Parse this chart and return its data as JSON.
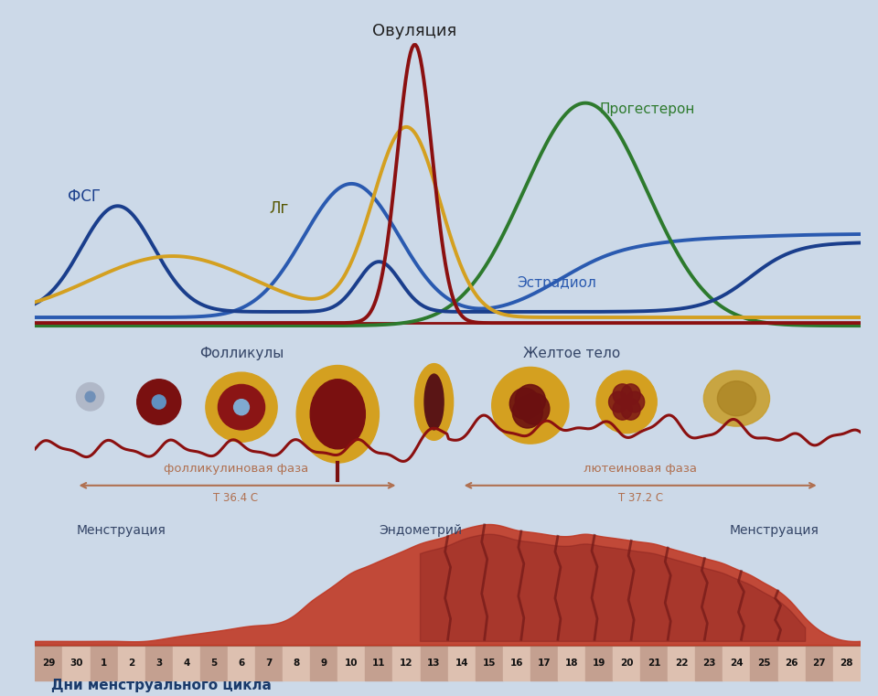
{
  "bg_color": "#ccd9e8",
  "title_ovulation": "Овуляция",
  "label_fsg": "ФСГ",
  "label_lg": "Лг",
  "label_estradiol": "Эстрадиол",
  "label_progesteron": "Прогестерон",
  "label_folliculy": "Фолликулы",
  "label_zheltoe_telo": "Желтое тело",
  "label_folliculinovaya": "фолликулиновая фаза",
  "label_temp_foll": "Т 36.4 С",
  "label_luteenovaya": "лютеиновая фаза",
  "label_temp_lut": "Т 37.2 С",
  "label_menstruation_left": "Менструация",
  "label_endometriy": "Эндометрий",
  "label_menstruation_right": "Менструация",
  "label_dni": "Дни менструального цикла",
  "days": [
    29,
    30,
    1,
    2,
    3,
    4,
    5,
    6,
    7,
    8,
    9,
    10,
    11,
    12,
    13,
    14,
    15,
    16,
    17,
    18,
    19,
    20,
    21,
    22,
    23,
    24,
    25,
    26,
    27,
    28
  ],
  "color_fsg": "#1a3e8c",
  "color_lg": "#d4a020",
  "color_lh": "#8b1010",
  "color_estradiol": "#1a3e8c",
  "color_progesteron": "#2d7a2d",
  "color_temp_line": "#8b1010",
  "text_color_dark": "#334466",
  "text_color_arrow": "#b07050"
}
